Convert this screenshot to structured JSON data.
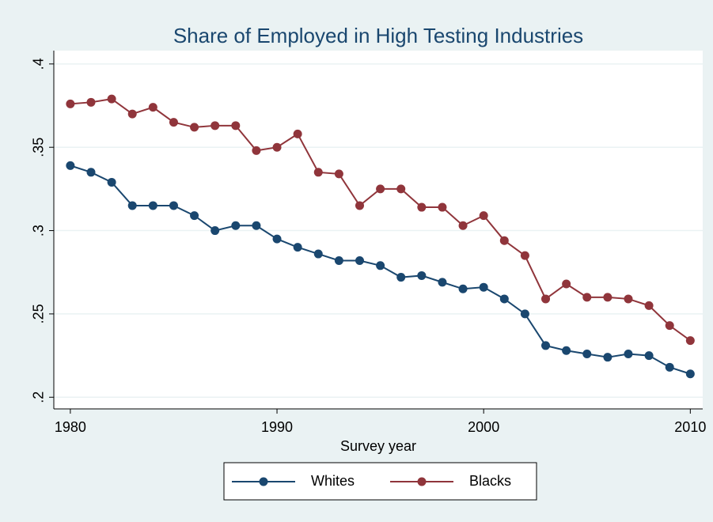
{
  "chart_data": {
    "type": "line",
    "title": "Share of Employed in High Testing Industries",
    "x_label": "Survey year",
    "x": [
      1980,
      1981,
      1982,
      1983,
      1984,
      1985,
      1986,
      1987,
      1988,
      1989,
      1990,
      1991,
      1992,
      1993,
      1994,
      1995,
      1996,
      1997,
      1998,
      1999,
      2000,
      2001,
      2002,
      2003,
      2004,
      2005,
      2006,
      2007,
      2008,
      2009,
      2010
    ],
    "series": [
      {
        "name": "Whites",
        "color": "#1a476f",
        "values": [
          0.339,
          0.335,
          0.329,
          0.315,
          0.315,
          0.315,
          0.309,
          0.3,
          0.303,
          0.303,
          0.295,
          0.29,
          0.286,
          0.282,
          0.282,
          0.279,
          0.272,
          0.273,
          0.269,
          0.265,
          0.266,
          0.259,
          0.25,
          0.231,
          0.228,
          0.226,
          0.224,
          0.226,
          0.225,
          0.218,
          0.214
        ]
      },
      {
        "name": "Blacks",
        "color": "#90353b",
        "values": [
          0.376,
          0.377,
          0.379,
          0.37,
          0.374,
          0.365,
          0.362,
          0.363,
          0.363,
          0.348,
          0.35,
          0.358,
          0.335,
          0.334,
          0.315,
          0.325,
          0.325,
          0.314,
          0.314,
          0.303,
          0.309,
          0.294,
          0.285,
          0.259,
          0.268,
          0.26,
          0.26,
          0.259,
          0.255,
          0.243,
          0.234
        ]
      }
    ],
    "xlim": [
      1979.2,
      2010.6
    ],
    "xticks": [
      1980,
      1990,
      2000,
      2010
    ],
    "ylim": [
      0.193,
      0.408
    ],
    "yticks": [
      {
        "value": 0.2,
        "label": ".2"
      },
      {
        "value": 0.25,
        "label": ".25"
      },
      {
        "value": 0.3,
        "label": ".3"
      },
      {
        "value": 0.35,
        "label": ".35"
      },
      {
        "value": 0.4,
        "label": ".4"
      }
    ],
    "grid": true,
    "legend": "bottom"
  }
}
